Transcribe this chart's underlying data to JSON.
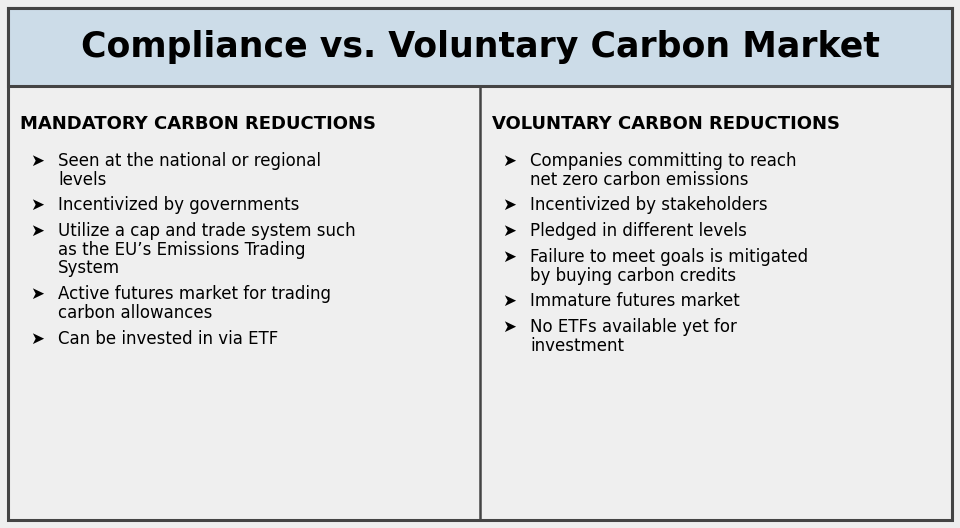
{
  "title": "Compliance vs. Voluntary Carbon Market",
  "title_fontsize": 25,
  "title_bg_color": "#ccdce8",
  "body_bg_color": "#efefef",
  "border_color": "#444444",
  "left_header": "MANDATORY CARBON REDUCTIONS",
  "right_header": "VOLUNTARY CARBON REDUCTIONS",
  "header_fontsize": 13,
  "bullet_fontsize": 12,
  "bullet_char": "➤",
  "left_bullets": [
    "Seen at the national or regional\nlevels",
    "Incentivized by governments",
    "Utilize a cap and trade system such\nas the EU’s Emissions Trading\nSystem",
    "Active futures market for trading\ncarbon allowances",
    "Can be invested in via ETF"
  ],
  "right_bullets": [
    "Companies committing to reach\nnet zero carbon emissions",
    "Incentivized by stakeholders",
    "Pledged in different levels",
    "Failure to meet goals is mitigated\nby buying carbon credits",
    "Immature futures market",
    "No ETFs available yet for\ninvestment"
  ],
  "fig_width": 9.6,
  "fig_height": 5.28,
  "dpi": 100
}
